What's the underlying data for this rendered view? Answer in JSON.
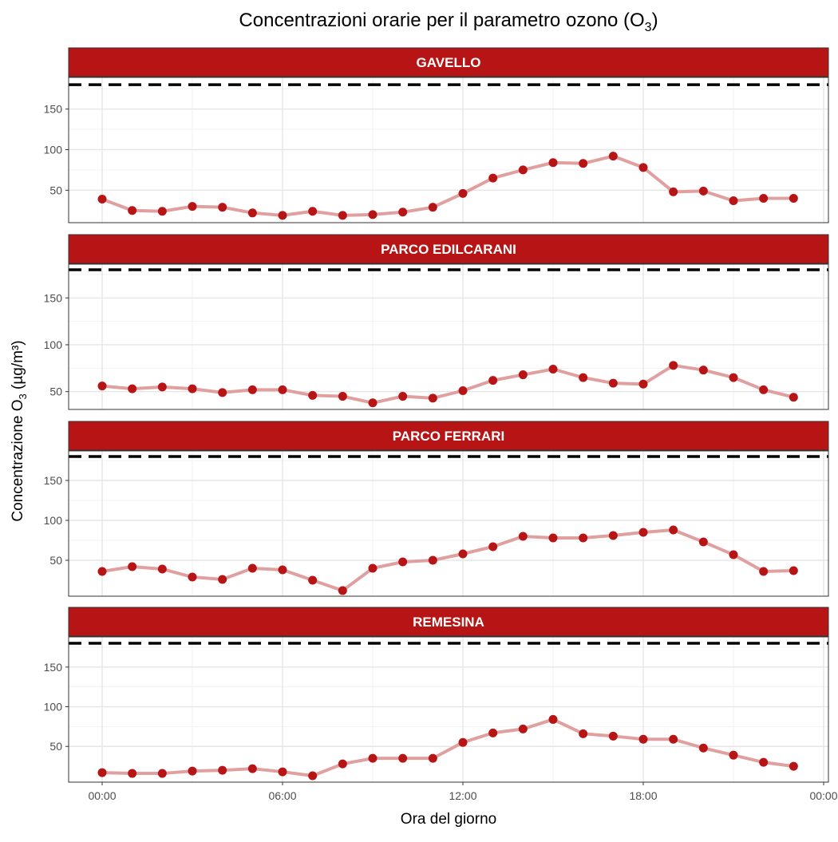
{
  "chart_data": {
    "type": "line",
    "title": "Concentrazioni orarie per il parametro ozono (O",
    "title_sub": "3",
    "title_end": ")",
    "xlabel": "Ora del giorno",
    "ylabel": "Concentrazione O",
    "ylabel_sub": "3",
    "ylabel_end": " (µg/m³)",
    "x_hours": [
      0,
      1,
      2,
      3,
      4,
      5,
      6,
      7,
      8,
      9,
      10,
      11,
      12,
      13,
      14,
      15,
      16,
      17,
      18,
      19,
      20,
      21,
      22,
      23
    ],
    "x_ticks": [
      "00:00",
      "06:00",
      "12:00",
      "18:00",
      "00:00"
    ],
    "y_ticks": [
      50,
      100,
      150
    ],
    "threshold": 180,
    "colors": {
      "strip": "#b71515",
      "point": "#b71515",
      "line": "#e0a0a0"
    },
    "panels": [
      {
        "name": "GAVELLO",
        "ylim": [
          10,
          189
        ],
        "values": [
          39,
          25,
          24,
          30,
          29,
          22,
          19,
          24,
          19,
          20,
          23,
          29,
          46,
          65,
          75,
          84,
          83,
          92,
          78,
          48,
          49,
          37,
          40,
          40
        ]
      },
      {
        "name": "PARCO EDILCARANI",
        "ylim": [
          31,
          186
        ],
        "values": [
          56,
          53,
          55,
          53,
          49,
          52,
          52,
          46,
          45,
          38,
          45,
          43,
          51,
          62,
          68,
          74,
          65,
          59,
          58,
          78,
          73,
          65,
          52,
          44
        ]
      },
      {
        "name": "PARCO FERRARI",
        "ylim": [
          5,
          187
        ],
        "values": [
          36,
          42,
          39,
          29,
          26,
          40,
          38,
          25,
          12,
          40,
          48,
          50,
          58,
          67,
          80,
          78,
          78,
          81,
          85,
          88,
          73,
          57,
          36,
          37
        ]
      },
      {
        "name": "REMESINA",
        "ylim": [
          5,
          188
        ],
        "values": [
          17,
          16,
          16,
          19,
          20,
          22,
          18,
          13,
          28,
          35,
          35,
          35,
          55,
          67,
          72,
          84,
          66,
          63,
          59,
          59,
          48,
          39,
          30,
          25
        ]
      }
    ]
  }
}
